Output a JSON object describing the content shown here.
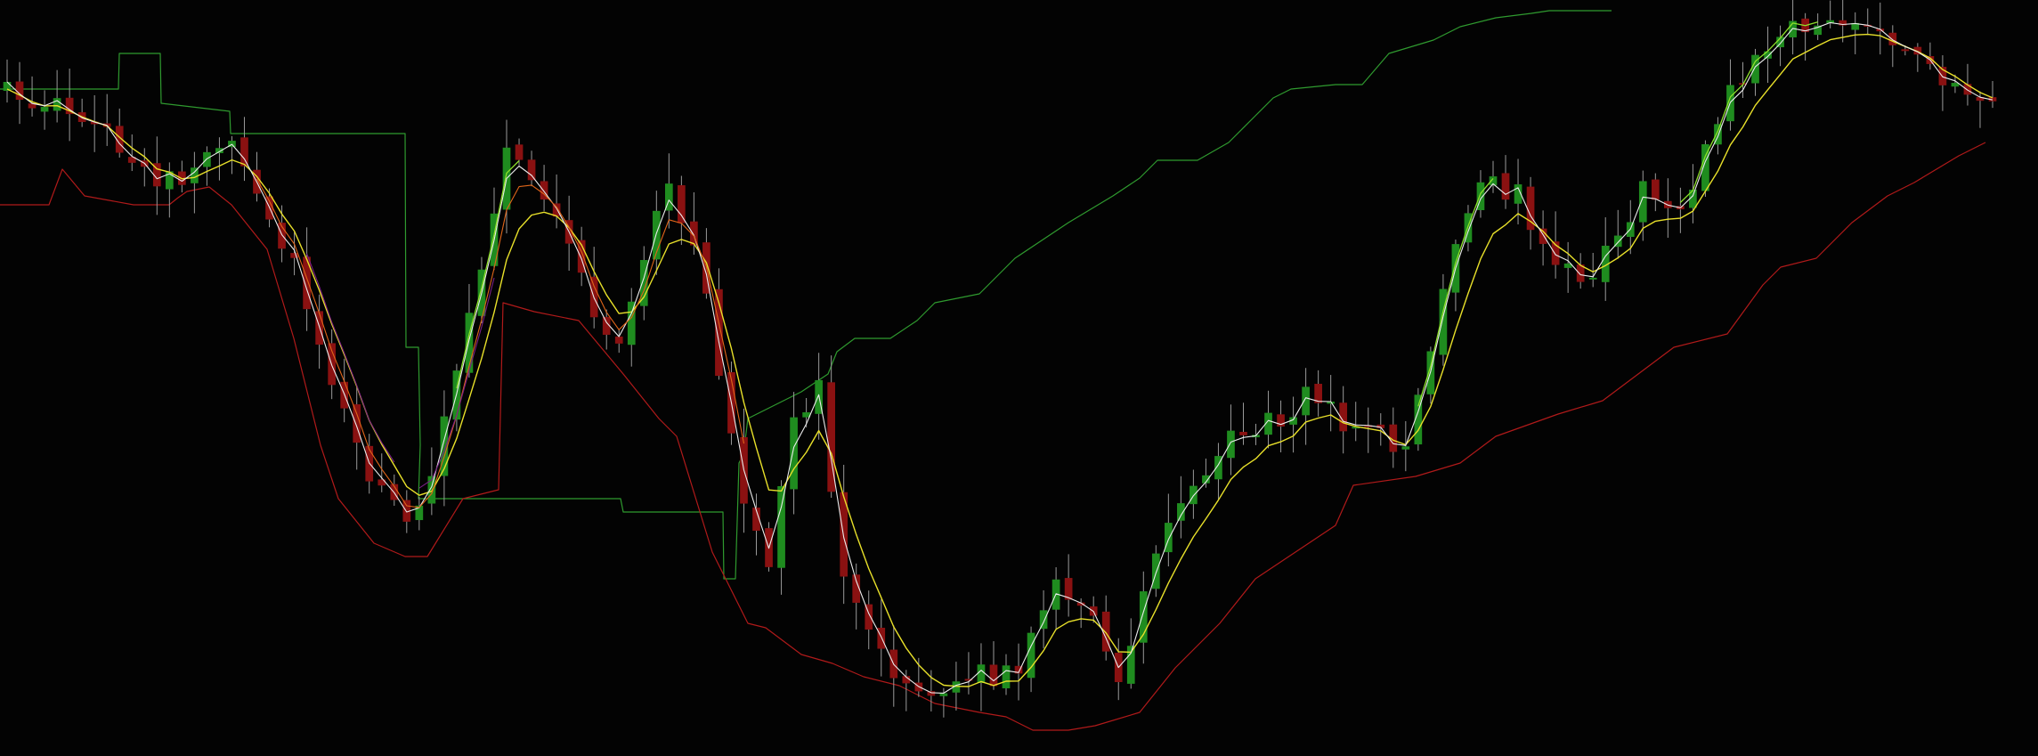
{
  "chart_data": {
    "type": "candlestick",
    "title": "",
    "xlabel": "",
    "ylabel": "",
    "grid": false,
    "legend": "none",
    "ylim": [
      0,
      849
    ],
    "x_count": 160,
    "colors": {
      "background": "#030303",
      "bull": "#1f8c1f",
      "bear": "#8a1111",
      "wick": "#9a9a9a",
      "upper_channel": "#2f9a2f",
      "lower_channel": "#b01a1a",
      "yellow_line": "#e8e02a",
      "white_line": "#ececec",
      "orange_line": "#e0661a",
      "purple_line": "#7a1f86",
      "lime_line": "#8ee02a"
    },
    "anchors": [
      [
        0,
        105
      ],
      [
        4,
        113
      ],
      [
        7,
        135
      ],
      [
        10,
        190
      ],
      [
        12,
        210
      ],
      [
        16,
        180
      ],
      [
        18,
        165
      ],
      [
        20,
        225
      ],
      [
        23,
        300
      ],
      [
        26,
        420
      ],
      [
        28,
        500
      ],
      [
        30,
        555
      ],
      [
        32,
        580
      ],
      [
        34,
        530
      ],
      [
        36,
        420
      ],
      [
        38,
        305
      ],
      [
        40,
        170
      ],
      [
        44,
        240
      ],
      [
        47,
        350
      ],
      [
        49,
        390
      ],
      [
        53,
        200
      ],
      [
        56,
        330
      ],
      [
        59,
        570
      ],
      [
        61,
        640
      ],
      [
        63,
        470
      ],
      [
        65,
        430
      ],
      [
        67,
        660
      ],
      [
        70,
        740
      ],
      [
        73,
        770
      ],
      [
        78,
        760
      ],
      [
        81,
        750
      ],
      [
        84,
        660
      ],
      [
        87,
        700
      ],
      [
        89,
        760
      ],
      [
        92,
        620
      ],
      [
        94,
        560
      ],
      [
        96,
        520
      ],
      [
        98,
        490
      ],
      [
        100,
        480
      ],
      [
        102,
        470
      ],
      [
        104,
        440
      ],
      [
        106,
        465
      ],
      [
        108,
        480
      ],
      [
        112,
        500
      ],
      [
        116,
        280
      ],
      [
        118,
        210
      ],
      [
        121,
        215
      ],
      [
        123,
        285
      ],
      [
        127,
        310
      ],
      [
        131,
        215
      ],
      [
        134,
        235
      ],
      [
        138,
        105
      ],
      [
        142,
        40
      ],
      [
        146,
        20
      ],
      [
        149,
        40
      ],
      [
        152,
        60
      ],
      [
        155,
        85
      ],
      [
        159,
        110
      ]
    ],
    "upper_channel": [
      [
        0,
        100
      ],
      [
        133,
        100
      ],
      [
        134,
        60
      ],
      [
        180,
        60
      ],
      [
        181,
        116
      ],
      [
        258,
        125
      ],
      [
        259,
        150
      ],
      [
        455,
        150
      ],
      [
        456,
        390
      ],
      [
        470,
        390
      ],
      [
        472,
        500
      ],
      [
        470,
        560
      ],
      [
        697,
        560
      ],
      [
        700,
        575
      ],
      [
        812,
        575
      ],
      [
        813,
        650
      ],
      [
        826,
        650
      ],
      [
        830,
        520
      ],
      [
        835,
        510
      ],
      [
        840,
        470
      ],
      [
        900,
        440
      ],
      [
        930,
        420
      ],
      [
        940,
        395
      ],
      [
        960,
        380
      ],
      [
        1000,
        380
      ],
      [
        1030,
        360
      ],
      [
        1050,
        340
      ],
      [
        1100,
        330
      ],
      [
        1140,
        290
      ],
      [
        1200,
        250
      ],
      [
        1250,
        220
      ],
      [
        1280,
        200
      ],
      [
        1300,
        180
      ],
      [
        1345,
        180
      ],
      [
        1380,
        160
      ],
      [
        1410,
        130
      ],
      [
        1430,
        110
      ],
      [
        1450,
        100
      ],
      [
        1500,
        95
      ],
      [
        1530,
        95
      ],
      [
        1560,
        60
      ],
      [
        1610,
        45
      ],
      [
        1640,
        30
      ],
      [
        1680,
        20
      ],
      [
        1720,
        15
      ],
      [
        1740,
        12
      ],
      [
        1760,
        12
      ],
      [
        1810,
        12
      ]
    ],
    "lower_channel": [
      [
        0,
        230
      ],
      [
        55,
        230
      ],
      [
        70,
        190
      ],
      [
        95,
        220
      ],
      [
        150,
        230
      ],
      [
        190,
        230
      ],
      [
        200,
        222
      ],
      [
        210,
        215
      ],
      [
        235,
        210
      ],
      [
        260,
        230
      ],
      [
        300,
        280
      ],
      [
        330,
        380
      ],
      [
        360,
        500
      ],
      [
        380,
        560
      ],
      [
        420,
        610
      ],
      [
        455,
        625
      ],
      [
        480,
        625
      ],
      [
        520,
        560
      ],
      [
        560,
        550
      ],
      [
        565,
        340
      ],
      [
        600,
        350
      ],
      [
        650,
        360
      ],
      [
        700,
        420
      ],
      [
        740,
        470
      ],
      [
        760,
        490
      ],
      [
        800,
        620
      ],
      [
        840,
        700
      ],
      [
        860,
        705
      ],
      [
        900,
        735
      ],
      [
        935,
        745
      ],
      [
        970,
        760
      ],
      [
        1010,
        770
      ],
      [
        1050,
        790
      ],
      [
        1100,
        800
      ],
      [
        1130,
        805
      ],
      [
        1160,
        820
      ],
      [
        1200,
        820
      ],
      [
        1230,
        815
      ],
      [
        1280,
        800
      ],
      [
        1320,
        750
      ],
      [
        1370,
        700
      ],
      [
        1410,
        650
      ],
      [
        1500,
        590
      ],
      [
        1520,
        545
      ],
      [
        1590,
        535
      ],
      [
        1640,
        520
      ],
      [
        1680,
        490
      ],
      [
        1750,
        465
      ],
      [
        1800,
        450
      ],
      [
        1840,
        420
      ],
      [
        1880,
        390
      ],
      [
        1940,
        375
      ],
      [
        1980,
        320
      ],
      [
        2000,
        300
      ],
      [
        2040,
        290
      ],
      [
        2080,
        250
      ],
      [
        2120,
        220
      ],
      [
        2150,
        205
      ],
      [
        2200,
        175
      ],
      [
        2230,
        160
      ]
    ]
  }
}
